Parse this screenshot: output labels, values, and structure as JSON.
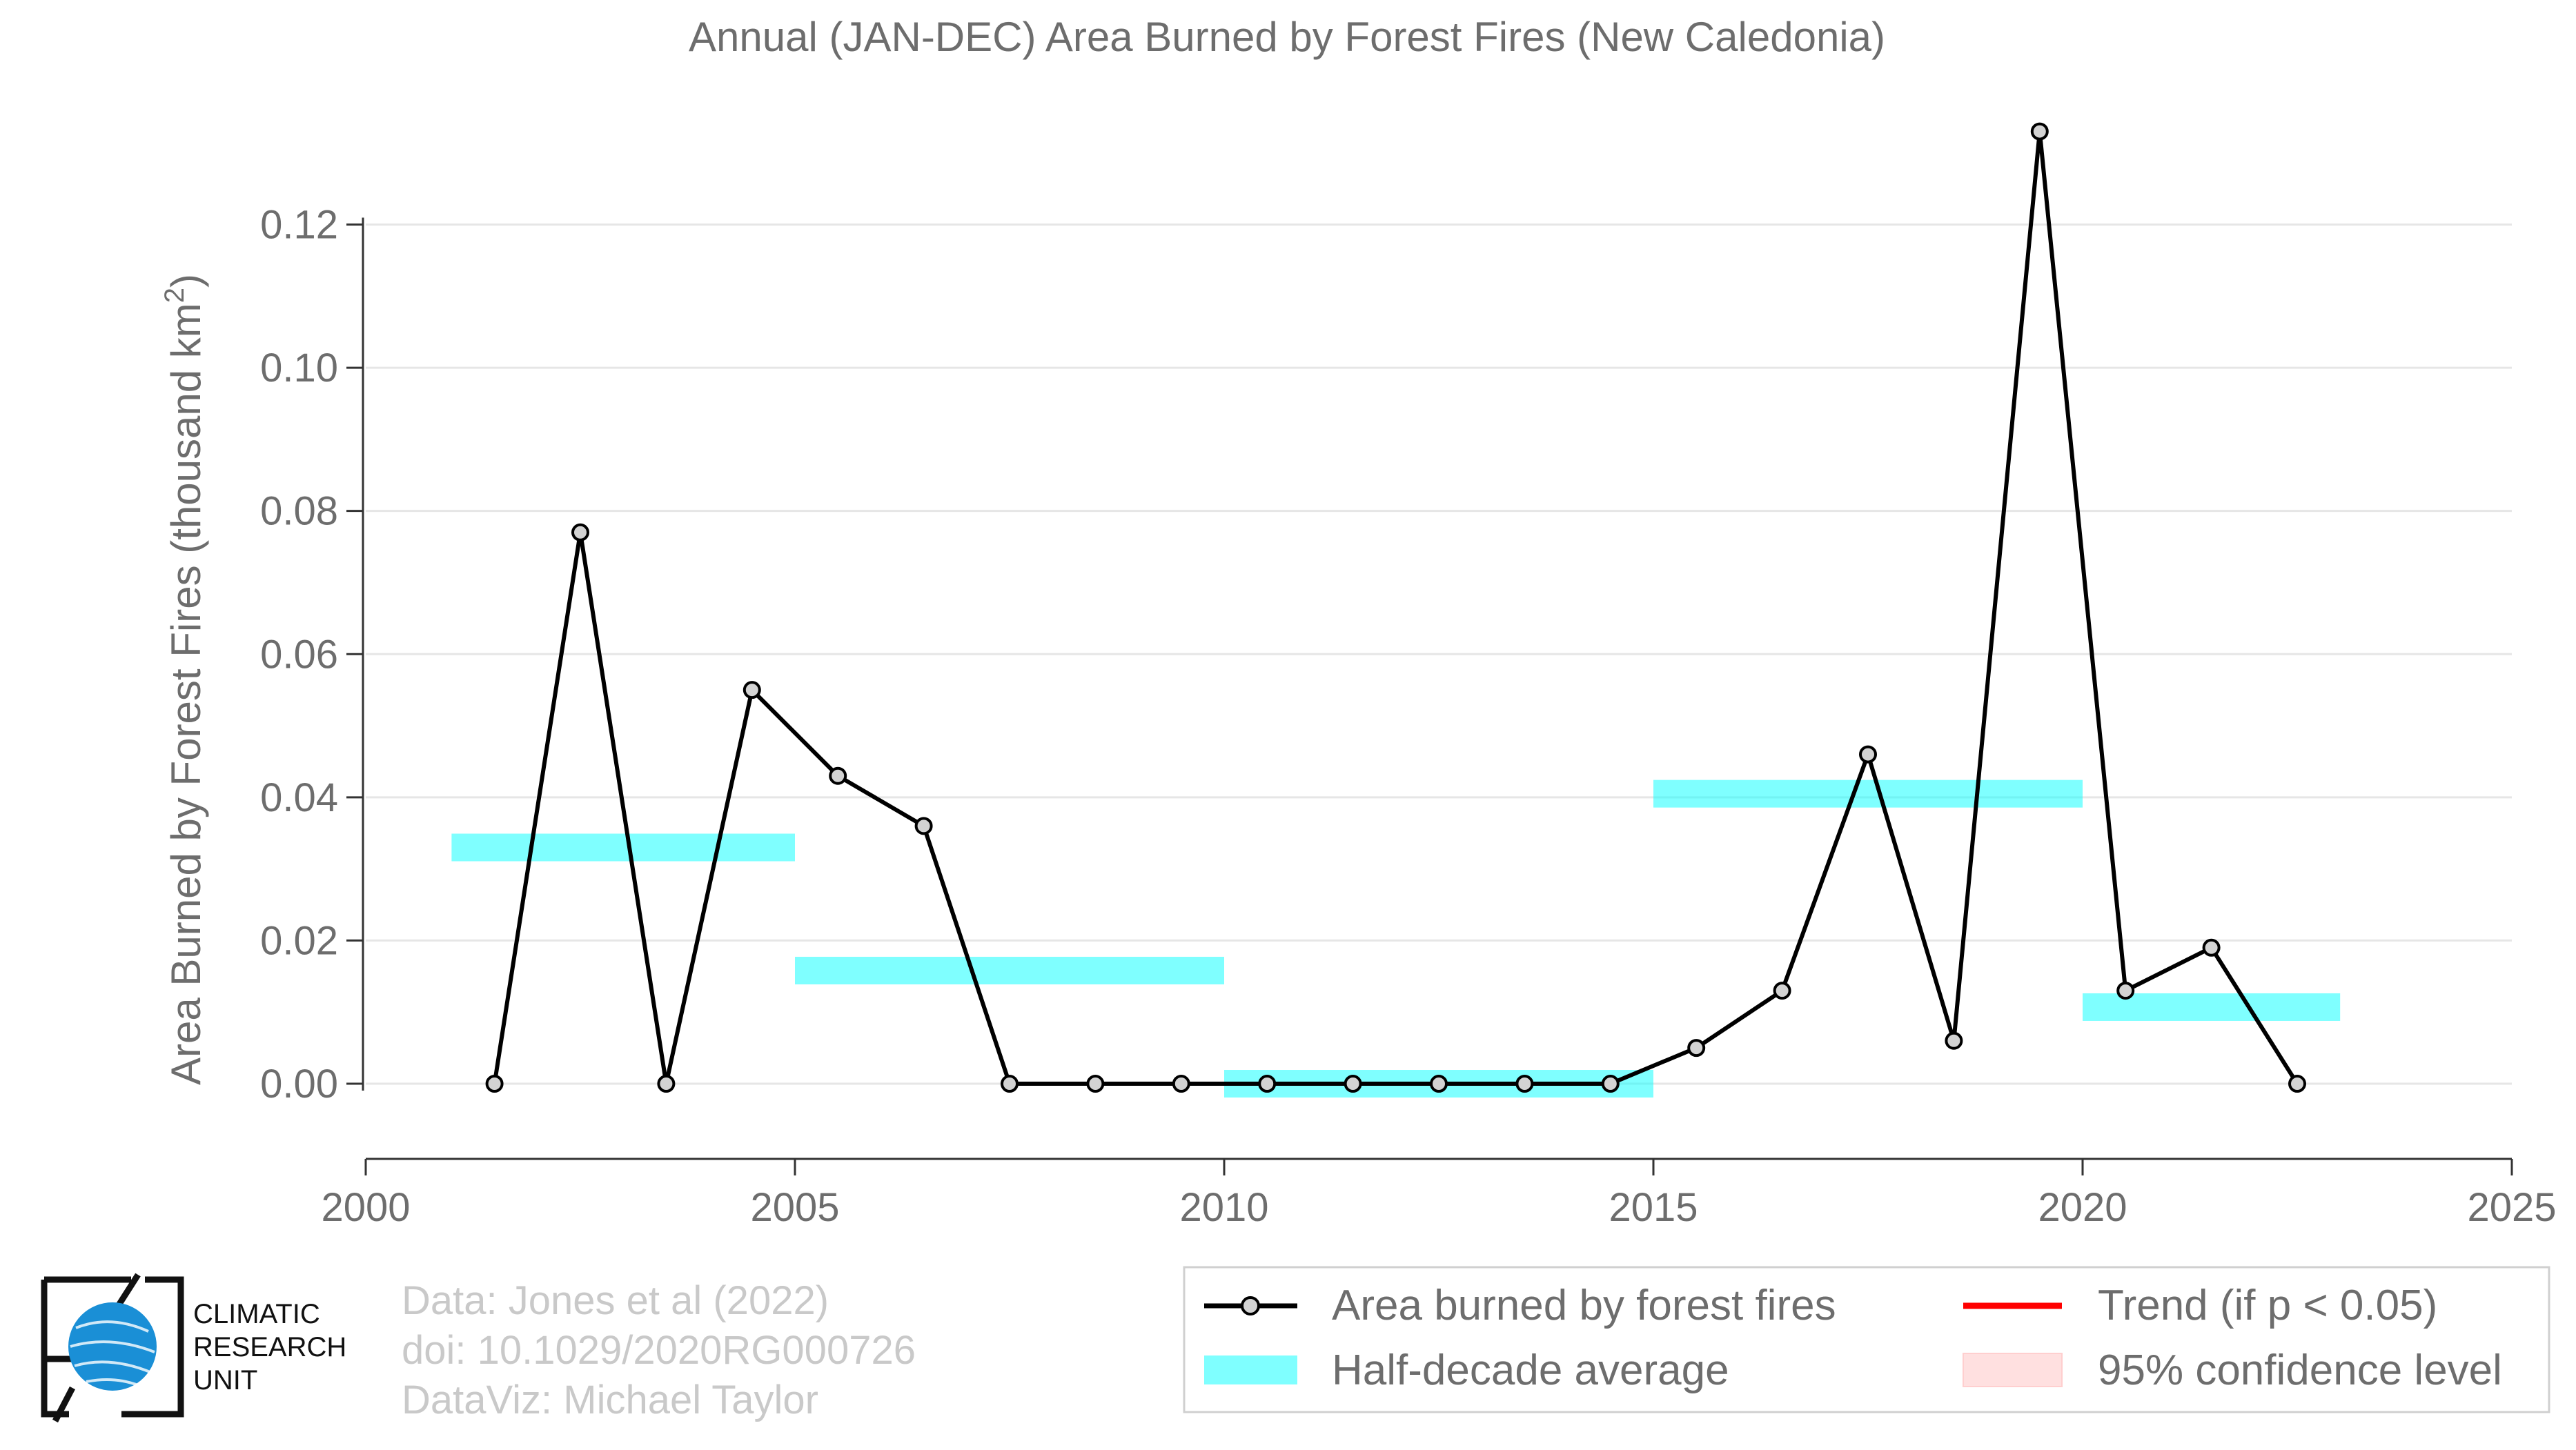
{
  "chart_data": {
    "type": "line",
    "title": "Annual (JAN-DEC) Area Burned by Forest Fires (New Caledonia)",
    "xlabel": "",
    "ylabel": "Area Burned by Forest Fires (thousand km",
    "ylabel_sup": "2",
    "ylabel_end": ")",
    "xlim": [
      2000,
      2025
    ],
    "ylim": [
      -0.0105,
      0.1345
    ],
    "x_ticks": [
      2000,
      2005,
      2010,
      2015,
      2020,
      2025
    ],
    "y_ticks": [
      "0.00",
      "0.02",
      "0.04",
      "0.06",
      "0.08",
      "0.10",
      "0.12"
    ],
    "y_tick_values": [
      0,
      0.02,
      0.04,
      0.06,
      0.08,
      0.1,
      0.12
    ],
    "grid": "horizontal",
    "series": [
      {
        "name": "Area burned by forest fires",
        "color": "#000000",
        "marker_fill": "#d3d3d3",
        "x": [
          2001.5,
          2002.5,
          2003.5,
          2004.5,
          2005.5,
          2006.5,
          2007.5,
          2008.5,
          2009.5,
          2010.5,
          2011.5,
          2012.5,
          2013.5,
          2014.5,
          2015.5,
          2016.5,
          2017.5,
          2018.5,
          2019.5,
          2020.5,
          2021.5,
          2022.5
        ],
        "y": [
          0.0,
          0.077,
          0.0,
          0.055,
          0.043,
          0.036,
          0.0,
          0.0,
          0.0,
          0.0,
          0.0,
          0.0,
          0.0,
          0.0,
          0.005,
          0.013,
          0.046,
          0.006,
          0.133,
          0.013,
          0.019,
          0.0
        ]
      },
      {
        "name": "Half-decade average",
        "color": "#00ffff",
        "segments": [
          {
            "x_start": 2001,
            "x_end": 2005,
            "value": 0.033
          },
          {
            "x_start": 2005,
            "x_end": 2010,
            "value": 0.0158
          },
          {
            "x_start": 2010,
            "x_end": 2015,
            "value": 0.0
          },
          {
            "x_start": 2015,
            "x_end": 2020,
            "value": 0.0405
          },
          {
            "x_start": 2020,
            "x_end": 2023,
            "value": 0.0107
          }
        ]
      }
    ],
    "legend": {
      "placement": "bottom-right",
      "items": [
        {
          "label": "Area burned by forest fires",
          "kind": "line-marker",
          "color": "#000000"
        },
        {
          "label": "Trend (if p < 0.05)",
          "kind": "line",
          "color": "#ff0000"
        },
        {
          "label": "Half-decade average",
          "kind": "band",
          "color": "#00ffff"
        },
        {
          "label": "95% confidence level",
          "kind": "shade",
          "color": "#ffcccc"
        }
      ]
    }
  },
  "credits": {
    "line1": "Data: Jones et al (2022)",
    "line2": "doi: 10.1029/2020RG000726",
    "line3": "DataViz: Michael Taylor"
  },
  "logo": {
    "line1": "CLIMATIC",
    "line2": "RESEARCH",
    "line3": "UNIT",
    "icon": "globe-icon",
    "color": "#1a8fd6"
  }
}
